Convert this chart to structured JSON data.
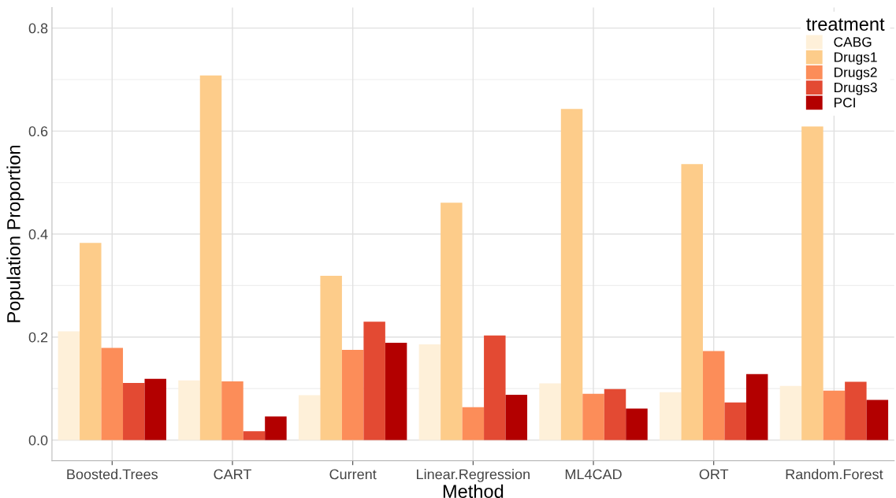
{
  "chart_data": {
    "type": "bar",
    "xlabel": "Method",
    "ylabel": "Population Proportion",
    "legend_title": "treatment",
    "categories": [
      "Boosted.Trees",
      "CART",
      "Current",
      "Linear.Regression",
      "ML4CAD",
      "ORT",
      "Random.Forest"
    ],
    "series": [
      {
        "name": "CABG",
        "color": "#fef0d9",
        "values": [
          0.211,
          0.116,
          0.087,
          0.186,
          0.11,
          0.093,
          0.105
        ]
      },
      {
        "name": "Drugs1",
        "color": "#fdcc8a",
        "values": [
          0.383,
          0.708,
          0.319,
          0.461,
          0.643,
          0.536,
          0.609
        ]
      },
      {
        "name": "Drugs2",
        "color": "#fc8d59",
        "values": [
          0.179,
          0.114,
          0.175,
          0.064,
          0.09,
          0.173,
          0.096
        ]
      },
      {
        "name": "Drugs3",
        "color": "#e34a33",
        "values": [
          0.111,
          0.017,
          0.23,
          0.203,
          0.099,
          0.073,
          0.113
        ]
      },
      {
        "name": "PCI",
        "color": "#b30000",
        "values": [
          0.119,
          0.046,
          0.189,
          0.088,
          0.061,
          0.128,
          0.078
        ]
      }
    ],
    "ylim": [
      -0.04,
      0.84
    ],
    "yticks": [
      {
        "value": 0,
        "label": "0.0"
      },
      0.2,
      0.4,
      0.6,
      0.8
    ],
    "grid": true,
    "legend": "top right"
  }
}
